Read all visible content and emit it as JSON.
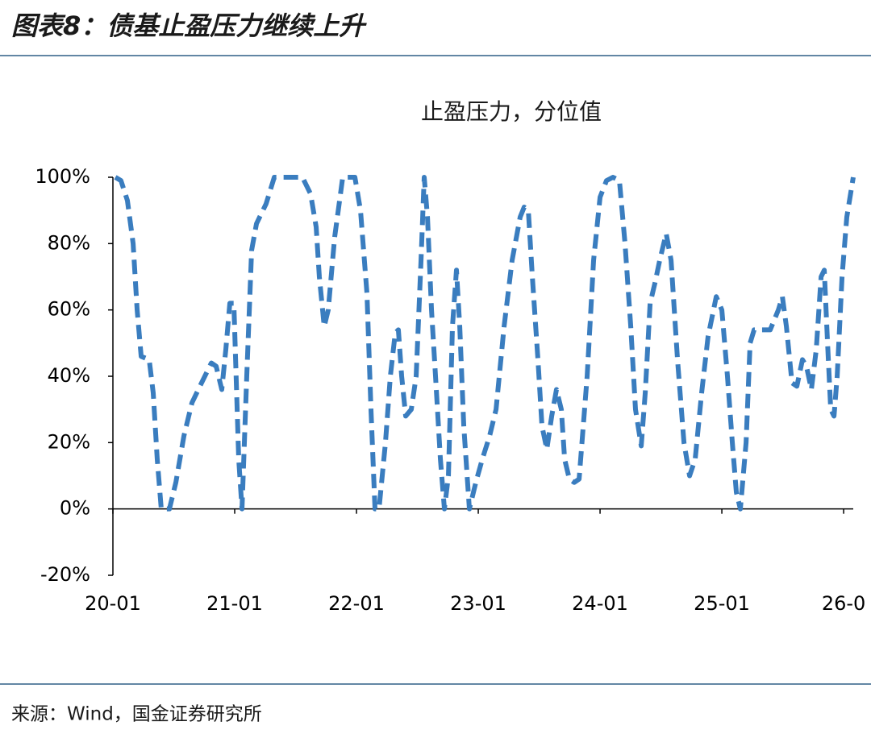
{
  "header": {
    "title": "图表8：债基止盈压力继续上升"
  },
  "chart_data": {
    "type": "line",
    "title": "止盈压力，分位值",
    "x": [
      2020.02,
      2020.066,
      2020.119,
      2020.166,
      2020.199,
      2020.232,
      2020.298,
      2020.331,
      2020.364,
      2020.397,
      2020.464,
      2020.517,
      2020.583,
      2020.649,
      2020.728,
      2020.808,
      2020.848,
      2020.894,
      2020.927,
      2020.96,
      2020.993,
      2021.033,
      2021.06,
      2021.099,
      2021.139,
      2021.179,
      2021.258,
      2021.325,
      2021.556,
      2021.623,
      2021.669,
      2021.695,
      2021.735,
      2021.768,
      2021.821,
      2021.887,
      2021.987,
      2022.033,
      2022.086,
      2022.119,
      2022.152,
      2022.185,
      2022.238,
      2022.278,
      2022.318,
      2022.344,
      2022.371,
      2022.404,
      2022.45,
      2022.49,
      2022.53,
      2022.556,
      2022.583,
      2022.616,
      2022.649,
      2022.689,
      2022.722,
      2022.755,
      2022.788,
      2022.821,
      2022.848,
      2022.881,
      2022.927,
      2022.98,
      2023.033,
      2023.093,
      2023.146,
      2023.212,
      2023.278,
      2023.344,
      2023.377,
      2023.411,
      2023.444,
      2023.49,
      2023.523,
      2023.563,
      2023.603,
      2023.642,
      2023.682,
      2023.709,
      2023.748,
      2023.788,
      2023.828,
      2023.894,
      2023.947,
      2024.0,
      2024.053,
      2024.106,
      2024.159,
      2024.205,
      2024.252,
      2024.291,
      2024.338,
      2024.371,
      2024.411,
      2024.45,
      2024.49,
      2024.543,
      2024.583,
      2024.636,
      2024.689,
      2024.735,
      2024.781,
      2024.834,
      2024.887,
      2024.954,
      2025.0,
      2025.046,
      2025.086,
      2025.119,
      2025.152,
      2025.199,
      2025.232,
      2025.265,
      2025.331,
      2025.397,
      2025.464,
      2025.497,
      2025.53,
      2025.576,
      2025.616,
      2025.662,
      2025.695,
      2025.735,
      2025.775,
      2025.815,
      2025.841,
      2025.868,
      2025.894,
      2025.921,
      2025.947,
      2025.987,
      2026.026,
      2026.079
    ],
    "series": [
      {
        "color": "#3a7dbf",
        "values": [
          100,
          99,
          93,
          80,
          60,
          46,
          45,
          35,
          15,
          0,
          0,
          8,
          22,
          32,
          38,
          44,
          43,
          36,
          48,
          62,
          62,
          15,
          0,
          40,
          78,
          86,
          92,
          100,
          100,
          95,
          85,
          70,
          55,
          60,
          82,
          100,
          100,
          90,
          65,
          30,
          0,
          0,
          20,
          40,
          53,
          54,
          40,
          28,
          30,
          40,
          75,
          100,
          88,
          60,
          40,
          15,
          0,
          10,
          55,
          72,
          55,
          25,
          0,
          8,
          15,
          22,
          30,
          55,
          75,
          88,
          91,
          90,
          70,
          45,
          25,
          18,
          28,
          36,
          30,
          15,
          9,
          8,
          9,
          40,
          75,
          94,
          99,
          100,
          99,
          80,
          55,
          30,
          19,
          35,
          62,
          68,
          75,
          83,
          75,
          45,
          20,
          10,
          15,
          35,
          52,
          64,
          60,
          40,
          20,
          5,
          0,
          20,
          50,
          54,
          54,
          54,
          60,
          64,
          55,
          38,
          37,
          45,
          43,
          36,
          48,
          70,
          72,
          50,
          30,
          28,
          40,
          70,
          88,
          100
        ]
      }
    ],
    "xlim": [
      2020,
      2026.079
    ],
    "xticks": [
      {
        "value": 2020,
        "label": "20-01"
      },
      {
        "value": 2021,
        "label": "21-01"
      },
      {
        "value": 2022,
        "label": "22-01"
      },
      {
        "value": 2023,
        "label": "23-01"
      },
      {
        "value": 2024,
        "label": "24-01"
      },
      {
        "value": 2025,
        "label": "25-01"
      },
      {
        "value": 2026,
        "label": "26-0"
      }
    ],
    "ylim": [
      -20,
      100
    ],
    "yticks": [
      {
        "value": -20,
        "label": "-20%"
      },
      {
        "value": 0,
        "label": "0%"
      },
      {
        "value": 20,
        "label": "20%"
      },
      {
        "value": 40,
        "label": "40%"
      },
      {
        "value": 60,
        "label": "60%"
      },
      {
        "value": 80,
        "label": "80%"
      },
      {
        "value": 100,
        "label": "100%"
      }
    ]
  },
  "footer": {
    "source": "来源：Wind，国金证券研究所"
  }
}
